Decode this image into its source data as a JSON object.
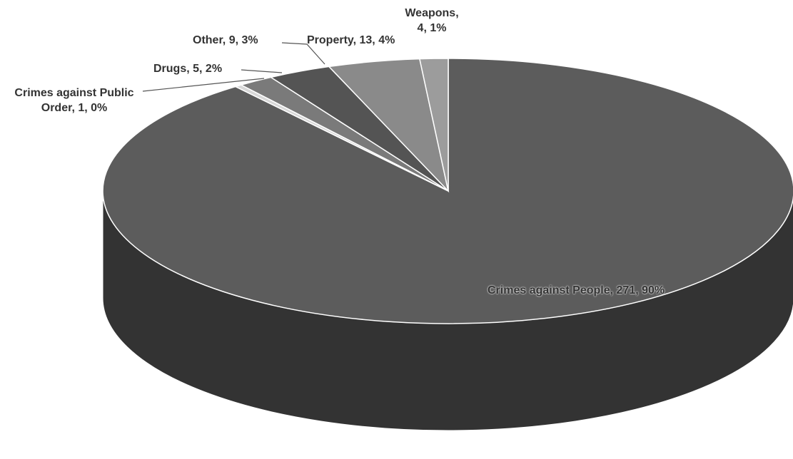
{
  "chart_data": {
    "type": "pie",
    "categories": [
      "Crimes against People",
      "Crimes against Public Order",
      "Drugs",
      "Other",
      "Property",
      "Weapons"
    ],
    "values": [
      271,
      1,
      5,
      9,
      13,
      4
    ],
    "percent_labels": [
      "90%",
      "0%",
      "2%",
      "3%",
      "4%",
      "1%"
    ],
    "label_separator": ", ",
    "colors": [
      "#5c5c5c",
      "#d8d8d8",
      "#7a7a7a",
      "#545454",
      "#8a8a8a",
      "#9c9c9c"
    ]
  }
}
